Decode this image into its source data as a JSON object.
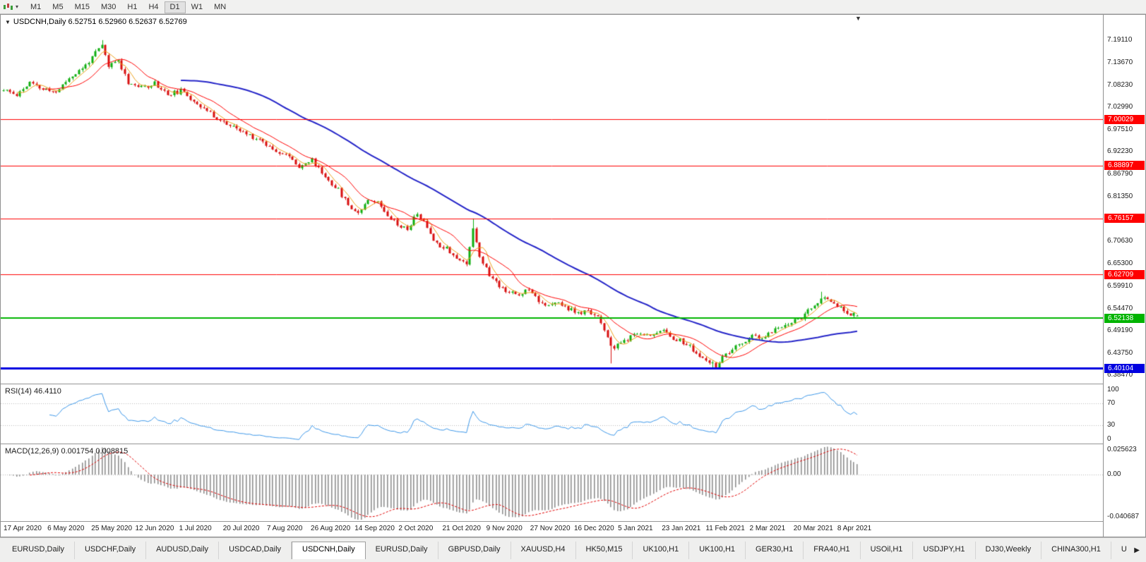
{
  "toolbar": {
    "timeframes": [
      "M1",
      "M5",
      "M15",
      "M30",
      "H1",
      "H4",
      "D1",
      "W1",
      "MN"
    ],
    "selected": "D1"
  },
  "chart_header": {
    "collapse_icon": "▼",
    "symbol": "USDCNH,Daily",
    "ohlc_text": "6.52751 6.52960 6.52637 6.52769"
  },
  "price_axis": {
    "labels": [
      "7.19110",
      "7.13670",
      "7.08230",
      "7.02990",
      "6.97510",
      "6.92230",
      "6.86790",
      "6.81350",
      "6.70630",
      "6.65300",
      "6.59910",
      "6.54470",
      "6.49190",
      "6.43750",
      "6.38470"
    ]
  },
  "time_axis": {
    "dates": [
      "17 Apr 2020",
      "6 May 2020",
      "25 May 2020",
      "12 Jun 2020",
      "1 Jul 2020",
      "20 Jul 2020",
      "7 Aug 2020",
      "26 Aug 2020",
      "14 Sep 2020",
      "2 Oct 2020",
      "21 Oct 2020",
      "9 Nov 2020",
      "27 Nov 2020",
      "16 Dec 2020",
      "5 Jan 2021",
      "23 Jan 2021",
      "11 Feb 2021",
      "2 Mar 2021",
      "20 Mar 2021",
      "8 Apr 2021"
    ]
  },
  "tabs": {
    "items": [
      "EURUSD,Daily",
      "USDCHF,Daily",
      "AUDUSD,Daily",
      "USDCAD,Daily",
      "USDCNH,Daily",
      "EURUSD,Daily",
      "GBPUSD,Daily",
      "XAUUSD,H4",
      "HK50,M15",
      "UK100,H1",
      "UK100,H1",
      "GER30,H1",
      "FRA40,H1",
      "USOil,H1",
      "USDJPY,H1",
      "DJ30,Weekly",
      "CHINA300,H1",
      "U"
    ],
    "active_index": 4,
    "scroll_right_icon": "▶"
  },
  "chart_data": {
    "type": "candlestick",
    "symbol": "USDCNH",
    "timeframe": "Daily",
    "ohlc_current": {
      "open": 6.52751,
      "high": 6.5296,
      "low": 6.52637,
      "close": 6.52769
    },
    "y_range": {
      "top": 7.252,
      "bottom": 6.364
    },
    "colors": {
      "up": "#0fae0f",
      "down": "#d80f0f",
      "bg": "#ffffff"
    },
    "candles": {
      "count": 261,
      "seed": 11,
      "body_noise": 0.011,
      "wick_noise": 0.005,
      "anchor_closes": [
        [
          0,
          7.07
        ],
        [
          4,
          7.06
        ],
        [
          8,
          7.088
        ],
        [
          12,
          7.072
        ],
        [
          16,
          7.066
        ],
        [
          20,
          7.1
        ],
        [
          24,
          7.122
        ],
        [
          27,
          7.15
        ],
        [
          30,
          7.178
        ],
        [
          32,
          7.128
        ],
        [
          35,
          7.143
        ],
        [
          38,
          7.09
        ],
        [
          42,
          7.076
        ],
        [
          46,
          7.088
        ],
        [
          50,
          7.06
        ],
        [
          54,
          7.068
        ],
        [
          58,
          7.046
        ],
        [
          62,
          7.02
        ],
        [
          66,
          6.998
        ],
        [
          70,
          6.98
        ],
        [
          74,
          6.965
        ],
        [
          78,
          6.952
        ],
        [
          82,
          6.93
        ],
        [
          86,
          6.915
        ],
        [
          90,
          6.888
        ],
        [
          94,
          6.902
        ],
        [
          98,
          6.862
        ],
        [
          102,
          6.83
        ],
        [
          105,
          6.795
        ],
        [
          108,
          6.775
        ],
        [
          111,
          6.81
        ],
        [
          114,
          6.8
        ],
        [
          117,
          6.772
        ],
        [
          120,
          6.748
        ],
        [
          123,
          6.735
        ],
        [
          126,
          6.775
        ],
        [
          129,
          6.74
        ],
        [
          132,
          6.7
        ],
        [
          135,
          6.692
        ],
        [
          138,
          6.665
        ],
        [
          141,
          6.652
        ],
        [
          143,
          6.74
        ],
        [
          145,
          6.672
        ],
        [
          148,
          6.625
        ],
        [
          151,
          6.6
        ],
        [
          154,
          6.585
        ],
        [
          157,
          6.576
        ],
        [
          160,
          6.595
        ],
        [
          163,
          6.565
        ],
        [
          166,
          6.55
        ],
        [
          169,
          6.558
        ],
        [
          172,
          6.545
        ],
        [
          175,
          6.532
        ],
        [
          178,
          6.538
        ],
        [
          181,
          6.528
        ],
        [
          184,
          6.47
        ],
        [
          186,
          6.448
        ],
        [
          188,
          6.462
        ],
        [
          191,
          6.475
        ],
        [
          194,
          6.487
        ],
        [
          197,
          6.478
        ],
        [
          200,
          6.495
        ],
        [
          203,
          6.478
        ],
        [
          206,
          6.468
        ],
        [
          209,
          6.452
        ],
        [
          212,
          6.428
        ],
        [
          215,
          6.412
        ],
        [
          217,
          6.408
        ],
        [
          219,
          6.425
        ],
        [
          222,
          6.445
        ],
        [
          225,
          6.462
        ],
        [
          228,
          6.478
        ],
        [
          231,
          6.47
        ],
        [
          234,
          6.49
        ],
        [
          237,
          6.502
        ],
        [
          240,
          6.512
        ],
        [
          243,
          6.524
        ],
        [
          246,
          6.545
        ],
        [
          249,
          6.564
        ],
        [
          251,
          6.572
        ],
        [
          253,
          6.558
        ],
        [
          255,
          6.545
        ],
        [
          257,
          6.535
        ],
        [
          260,
          6.5277
        ]
      ],
      "overrides": [
        {
          "i": 30,
          "high": 7.1911
        },
        {
          "i": 143,
          "high": 6.7616
        },
        {
          "i": 185,
          "low": 6.4125
        },
        {
          "i": 216,
          "low": 6.4012
        },
        {
          "i": 249,
          "high": 6.5852
        }
      ]
    },
    "moving_averages": [
      {
        "period": 5,
        "color": "#eca11b",
        "width": 1
      },
      {
        "period": 13,
        "color": "#ff0000",
        "width": 1
      },
      {
        "period": 55,
        "color": "#2525c8",
        "width": 2
      }
    ],
    "horizontal_lines": [
      {
        "price": 7.00029,
        "label": "7.00029",
        "color": "#ff0000",
        "width": 1
      },
      {
        "price": 6.88897,
        "label": "6.88897",
        "color": "#ff0000",
        "width": 1
      },
      {
        "price": 6.76157,
        "label": "6.76157",
        "color": "#ff0000",
        "width": 1
      },
      {
        "price": 6.62709,
        "label": "6.62709",
        "color": "#ff0000",
        "width": 1
      },
      {
        "price": 6.52138,
        "label": "6.52138",
        "color": "#00b400",
        "width": 2
      },
      {
        "price": 6.40104,
        "label": "6.40104",
        "color": "#0000e0",
        "width": 3
      }
    ],
    "indicators": {
      "rsi": {
        "label": "RSI(14) 46.4110",
        "period": 14,
        "current": 46.411,
        "color": "#3d97e8",
        "levels": [
          100,
          70,
          30,
          0
        ],
        "range": [
          0,
          100
        ]
      },
      "macd": {
        "label": "MACD(12,26,9) 0.001754 0.008815",
        "fast": 12,
        "slow": 26,
        "signal": 9,
        "current_values": [
          0.001754,
          0.008815
        ],
        "axis_labels": [
          "0.025623",
          "0.00",
          "-0.040687"
        ],
        "scale": {
          "top": 0.025623,
          "bottom": -0.040687
        },
        "hist_color": "#8f8f8f",
        "signal_color": "#e00000"
      }
    }
  }
}
